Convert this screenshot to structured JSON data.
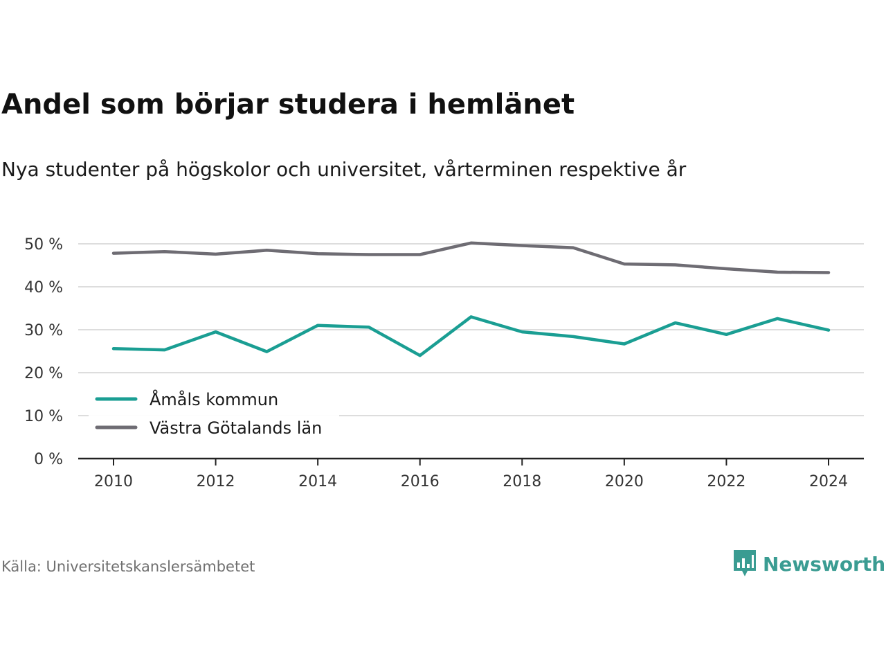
{
  "title": "Andel som börjar studera i hemlänet",
  "subtitle": "Nya studenter på högskolor och universitet, vårterminen respektive år",
  "source": "Källa: Universitetskanslersämbetet",
  "logo": {
    "text": "Newsworthy",
    "icon": "newsworthy-chart-icon",
    "color": "#3a9c92"
  },
  "chart_data": {
    "type": "line",
    "x": [
      2010,
      2011,
      2012,
      2013,
      2014,
      2015,
      2016,
      2017,
      2018,
      2019,
      2020,
      2021,
      2022,
      2023,
      2024
    ],
    "x_ticks": [
      "2010",
      "2012",
      "2014",
      "2016",
      "2018",
      "2020",
      "2022",
      "2024"
    ],
    "y_ticks": [
      "0 %",
      "10 %",
      "20 %",
      "30 %",
      "40 %",
      "50 %"
    ],
    "ylim": [
      0,
      50
    ],
    "grid": true,
    "legend_position": "bottom-left",
    "series": [
      {
        "name": "Åmåls kommun",
        "color": "#1a9e93",
        "values": [
          25.6,
          25.3,
          29.5,
          24.9,
          31.0,
          30.6,
          24.0,
          33.0,
          29.5,
          28.4,
          26.7,
          31.6,
          28.9,
          32.6,
          29.9
        ]
      },
      {
        "name": "Västra Götalands län",
        "color": "#6e6c73",
        "values": [
          47.8,
          48.2,
          47.6,
          48.5,
          47.7,
          47.5,
          47.5,
          50.2,
          49.6,
          49.1,
          45.3,
          45.1,
          44.2,
          43.4,
          43.3
        ]
      }
    ]
  }
}
